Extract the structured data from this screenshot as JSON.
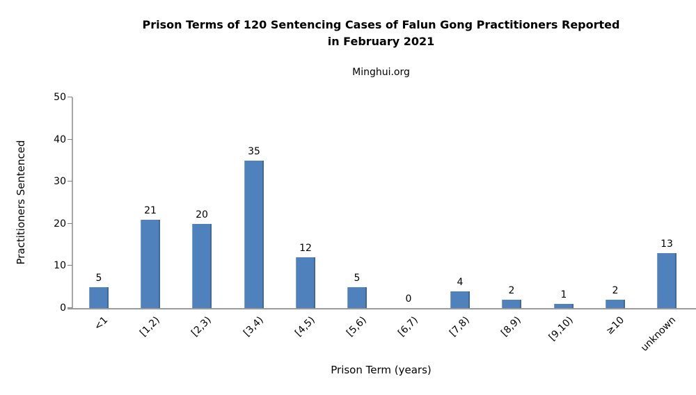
{
  "chart_data": {
    "type": "bar",
    "title": "Prison Terms of 120 Sentencing Cases of Falun Gong Practitioners Reported in February 2021",
    "title_lines": [
      "Prison Terms of 120 Sentencing Cases of Falun Gong Practitioners Reported",
      "in February 2021"
    ],
    "subtitle": "Minghui.org",
    "xlabel": "Prison Term (years)",
    "ylabel": "Practitioners Sentenced",
    "categories": [
      "<1",
      "[1,2)",
      "[2,3)",
      "[3,4)",
      "[4,5)",
      "[5,6)",
      "[6,7)",
      "[7,8)",
      "[8,9)",
      "[9,10)",
      "≥10",
      "unknown"
    ],
    "values": [
      5,
      21,
      20,
      35,
      12,
      5,
      0,
      4,
      2,
      1,
      2,
      13
    ],
    "data_labels": [
      5,
      21,
      20,
      35,
      12,
      5,
      0,
      4,
      2,
      1,
      2,
      13
    ],
    "ylim": [
      0,
      50
    ],
    "yticks": [
      0,
      10,
      20,
      30,
      40,
      50
    ],
    "grid": false,
    "legend_position": "none",
    "bar_color": "#4f81bd",
    "axis_line_color": "#a6a6a6",
    "baseline_color": "#9b9b9b",
    "text_color": "#000000",
    "background_color": "#ffffff"
  }
}
